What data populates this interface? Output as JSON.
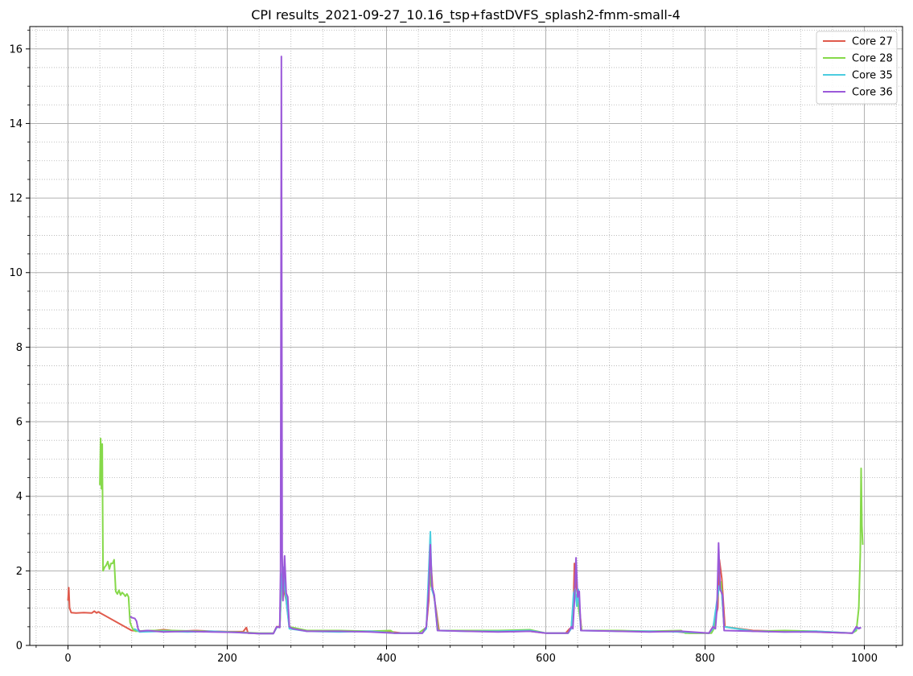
{
  "chart_data": {
    "type": "line",
    "title": "CPI results_2021-09-27_10.16_tsp+fastDVFS_splash2-fmm-small-4",
    "xlabel": "",
    "ylabel": "",
    "xlim": [
      -48,
      1048
    ],
    "ylim": [
      0,
      16.6
    ],
    "x_ticks": [
      0,
      200,
      400,
      600,
      800,
      1000
    ],
    "x_tick_labels": [
      "0",
      "200",
      "400",
      "600",
      "800",
      "1000"
    ],
    "y_ticks": [
      0,
      2,
      4,
      6,
      8,
      10,
      12,
      14,
      16
    ],
    "y_tick_labels": [
      "0",
      "2",
      "4",
      "6",
      "8",
      "10",
      "12",
      "14",
      "16"
    ],
    "x_minor_step": 40,
    "y_minor_step": 0.5,
    "grid": {
      "major": true,
      "minor": true,
      "major_color": "#b0b0b0",
      "minor_color": "#b0b0b0"
    },
    "legend_position": "top-right",
    "series": [
      {
        "name": "Core 27",
        "color": "#e05a4c",
        "points": [
          [
            0,
            1.2
          ],
          [
            1,
            1.55
          ],
          [
            2,
            1.0
          ],
          [
            4,
            0.88
          ],
          [
            10,
            0.87
          ],
          [
            20,
            0.88
          ],
          [
            30,
            0.87
          ],
          [
            33,
            0.92
          ],
          [
            36,
            0.87
          ],
          [
            38,
            0.9
          ],
          [
            80,
            0.4
          ],
          [
            100,
            0.38
          ],
          [
            120,
            0.42
          ],
          [
            140,
            0.38
          ],
          [
            160,
            0.4
          ],
          [
            180,
            0.38
          ],
          [
            200,
            0.37
          ],
          [
            220,
            0.37
          ],
          [
            224,
            0.48
          ],
          [
            226,
            0.33
          ],
          [
            240,
            0.32
          ],
          [
            258,
            0.32
          ],
          [
            262,
            0.5
          ],
          [
            266,
            0.5
          ],
          [
            268,
            1.6
          ],
          [
            270,
            1.9
          ],
          [
            272,
            1.4
          ],
          [
            274,
            1.2
          ],
          [
            278,
            0.5
          ],
          [
            285,
            0.45
          ],
          [
            300,
            0.38
          ],
          [
            330,
            0.4
          ],
          [
            360,
            0.38
          ],
          [
            400,
            0.38
          ],
          [
            420,
            0.33
          ],
          [
            445,
            0.33
          ],
          [
            450,
            0.5
          ],
          [
            453,
            1.2
          ],
          [
            455,
            2.5
          ],
          [
            458,
            1.5
          ],
          [
            462,
            1.0
          ],
          [
            466,
            0.4
          ],
          [
            500,
            0.4
          ],
          [
            540,
            0.4
          ],
          [
            580,
            0.38
          ],
          [
            600,
            0.33
          ],
          [
            625,
            0.33
          ],
          [
            630,
            0.45
          ],
          [
            634,
            0.5
          ],
          [
            636,
            2.2
          ],
          [
            638,
            1.6
          ],
          [
            641,
            1.3
          ],
          [
            645,
            0.4
          ],
          [
            680,
            0.4
          ],
          [
            720,
            0.38
          ],
          [
            760,
            0.38
          ],
          [
            780,
            0.33
          ],
          [
            805,
            0.33
          ],
          [
            810,
            0.5
          ],
          [
            816,
            1.0
          ],
          [
            818,
            2.3
          ],
          [
            821,
            1.8
          ],
          [
            825,
            0.5
          ],
          [
            860,
            0.4
          ],
          [
            900,
            0.38
          ],
          [
            940,
            0.36
          ],
          [
            985,
            0.33
          ],
          [
            990,
            0.45
          ],
          [
            995,
            0.48
          ]
        ]
      },
      {
        "name": "Core 28",
        "color": "#86d94a",
        "points": [
          [
            40,
            4.3
          ],
          [
            41,
            5.55
          ],
          [
            42,
            4.2
          ],
          [
            43,
            5.4
          ],
          [
            44,
            2.0
          ],
          [
            46,
            2.1
          ],
          [
            48,
            2.15
          ],
          [
            50,
            2.25
          ],
          [
            52,
            2.05
          ],
          [
            54,
            2.2
          ],
          [
            56,
            2.2
          ],
          [
            58,
            2.3
          ],
          [
            60,
            1.45
          ],
          [
            62,
            1.38
          ],
          [
            64,
            1.48
          ],
          [
            66,
            1.35
          ],
          [
            68,
            1.42
          ],
          [
            70,
            1.38
          ],
          [
            72,
            1.32
          ],
          [
            74,
            1.38
          ],
          [
            76,
            1.3
          ],
          [
            78,
            0.62
          ],
          [
            80,
            0.5
          ],
          [
            82,
            0.42
          ],
          [
            85,
            0.38
          ],
          [
            100,
            0.4
          ],
          [
            130,
            0.4
          ],
          [
            170,
            0.38
          ],
          [
            210,
            0.36
          ],
          [
            240,
            0.33
          ],
          [
            258,
            0.33
          ],
          [
            262,
            0.48
          ],
          [
            266,
            0.5
          ],
          [
            268,
            1.5
          ],
          [
            270,
            1.8
          ],
          [
            274,
            1.3
          ],
          [
            278,
            0.5
          ],
          [
            300,
            0.4
          ],
          [
            340,
            0.4
          ],
          [
            380,
            0.38
          ],
          [
            405,
            0.4
          ],
          [
            410,
            0.33
          ],
          [
            440,
            0.33
          ],
          [
            450,
            0.48
          ],
          [
            454,
            2.0
          ],
          [
            456,
            1.6
          ],
          [
            460,
            1.3
          ],
          [
            465,
            0.4
          ],
          [
            500,
            0.4
          ],
          [
            540,
            0.4
          ],
          [
            580,
            0.42
          ],
          [
            600,
            0.33
          ],
          [
            628,
            0.33
          ],
          [
            632,
            0.48
          ],
          [
            636,
            1.5
          ],
          [
            640,
            1.2
          ],
          [
            645,
            0.4
          ],
          [
            690,
            0.4
          ],
          [
            730,
            0.38
          ],
          [
            770,
            0.4
          ],
          [
            775,
            0.33
          ],
          [
            808,
            0.33
          ],
          [
            812,
            0.48
          ],
          [
            817,
            1.5
          ],
          [
            820,
            1.7
          ],
          [
            824,
            0.5
          ],
          [
            860,
            0.38
          ],
          [
            900,
            0.4
          ],
          [
            940,
            0.38
          ],
          [
            985,
            0.33
          ],
          [
            990,
            0.4
          ],
          [
            993,
            1.0
          ],
          [
            995,
            2.5
          ],
          [
            996,
            4.75
          ],
          [
            997,
            3.2
          ],
          [
            998,
            2.7
          ]
        ]
      },
      {
        "name": "Core 35",
        "color": "#4ccde0",
        "points": [
          [
            83,
            0.45
          ],
          [
            90,
            0.36
          ],
          [
            120,
            0.38
          ],
          [
            150,
            0.36
          ],
          [
            180,
            0.38
          ],
          [
            210,
            0.35
          ],
          [
            240,
            0.32
          ],
          [
            258,
            0.32
          ],
          [
            262,
            0.48
          ],
          [
            266,
            0.5
          ],
          [
            268,
            1.8
          ],
          [
            270,
            2.1
          ],
          [
            274,
            1.2
          ],
          [
            278,
            0.45
          ],
          [
            300,
            0.38
          ],
          [
            340,
            0.36
          ],
          [
            380,
            0.38
          ],
          [
            410,
            0.33
          ],
          [
            445,
            0.33
          ],
          [
            450,
            0.45
          ],
          [
            453,
            2.0
          ],
          [
            455,
            3.05
          ],
          [
            457,
            1.5
          ],
          [
            460,
            1.3
          ],
          [
            464,
            0.4
          ],
          [
            500,
            0.38
          ],
          [
            540,
            0.38
          ],
          [
            580,
            0.4
          ],
          [
            600,
            0.33
          ],
          [
            628,
            0.33
          ],
          [
            632,
            0.45
          ],
          [
            635,
            1.4
          ],
          [
            637,
            1.5
          ],
          [
            639,
            1.05
          ],
          [
            641,
            1.5
          ],
          [
            644,
            0.4
          ],
          [
            690,
            0.38
          ],
          [
            730,
            0.38
          ],
          [
            770,
            0.36
          ],
          [
            805,
            0.33
          ],
          [
            810,
            0.45
          ],
          [
            815,
            1.2
          ],
          [
            818,
            1.6
          ],
          [
            821,
            1.4
          ],
          [
            824,
            0.5
          ],
          [
            860,
            0.38
          ],
          [
            900,
            0.36
          ],
          [
            940,
            0.38
          ],
          [
            985,
            0.33
          ],
          [
            990,
            0.45
          ],
          [
            995,
            0.48
          ]
        ]
      },
      {
        "name": "Core 36",
        "color": "#9b59d9",
        "points": [
          [
            78,
            0.78
          ],
          [
            80,
            0.75
          ],
          [
            84,
            0.72
          ],
          [
            86,
            0.65
          ],
          [
            88,
            0.45
          ],
          [
            90,
            0.38
          ],
          [
            100,
            0.4
          ],
          [
            120,
            0.36
          ],
          [
            150,
            0.38
          ],
          [
            180,
            0.36
          ],
          [
            210,
            0.35
          ],
          [
            240,
            0.32
          ],
          [
            258,
            0.32
          ],
          [
            262,
            0.5
          ],
          [
            266,
            0.48
          ],
          [
            267,
            2.0
          ],
          [
            268,
            15.8
          ],
          [
            269,
            2.4
          ],
          [
            270,
            1.2
          ],
          [
            272,
            2.4
          ],
          [
            274,
            1.4
          ],
          [
            276,
            1.3
          ],
          [
            278,
            0.5
          ],
          [
            282,
            0.45
          ],
          [
            300,
            0.38
          ],
          [
            340,
            0.38
          ],
          [
            380,
            0.36
          ],
          [
            410,
            0.33
          ],
          [
            445,
            0.33
          ],
          [
            450,
            0.5
          ],
          [
            453,
            1.5
          ],
          [
            455,
            2.7
          ],
          [
            457,
            1.6
          ],
          [
            460,
            1.35
          ],
          [
            464,
            0.4
          ],
          [
            500,
            0.38
          ],
          [
            540,
            0.36
          ],
          [
            580,
            0.38
          ],
          [
            600,
            0.33
          ],
          [
            628,
            0.33
          ],
          [
            632,
            0.5
          ],
          [
            634,
            0.45
          ],
          [
            636,
            1.2
          ],
          [
            638,
            2.35
          ],
          [
            640,
            1.3
          ],
          [
            642,
            1.45
          ],
          [
            644,
            0.4
          ],
          [
            690,
            0.38
          ],
          [
            730,
            0.36
          ],
          [
            770,
            0.38
          ],
          [
            805,
            0.33
          ],
          [
            810,
            0.5
          ],
          [
            813,
            0.45
          ],
          [
            815,
            1.0
          ],
          [
            817,
            2.75
          ],
          [
            819,
            1.5
          ],
          [
            822,
            1.35
          ],
          [
            824,
            0.4
          ],
          [
            860,
            0.38
          ],
          [
            900,
            0.36
          ],
          [
            940,
            0.36
          ],
          [
            985,
            0.33
          ],
          [
            990,
            0.5
          ],
          [
            993,
            0.45
          ],
          [
            996,
            0.48
          ]
        ]
      }
    ]
  }
}
